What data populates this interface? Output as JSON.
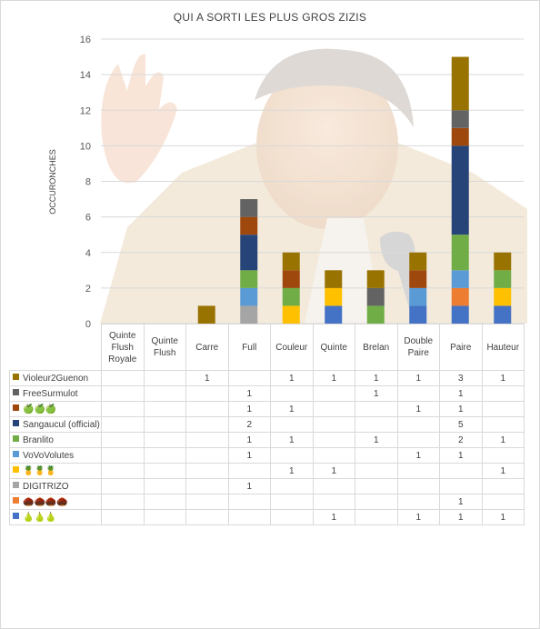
{
  "chart_data": {
    "type": "bar",
    "stacked": true,
    "title": "QUI A SORTI LES PLUS GROS ZIZIS",
    "ylabel": "OCCURONCHES",
    "xlabel": "",
    "ylim": [
      0,
      16
    ],
    "yticks": [
      0,
      2,
      4,
      6,
      8,
      10,
      12,
      14,
      16
    ],
    "categories": [
      "Quinte Flush Royale",
      "Quinte Flush",
      "Carre",
      "Full",
      "Couleur",
      "Quinte",
      "Brelan",
      "Double Paire",
      "Paire",
      "Hauteur"
    ],
    "legend_position": "data-table",
    "series": [
      {
        "name": "🍐🍐🍐",
        "color": "#4472c4",
        "values": [
          null,
          null,
          null,
          null,
          null,
          1,
          null,
          1,
          1,
          1
        ]
      },
      {
        "name": "🌰🌰🌰🌰",
        "color": "#ed7d31",
        "values": [
          null,
          null,
          null,
          null,
          null,
          null,
          null,
          null,
          1,
          null
        ]
      },
      {
        "name": "DIGITRIZO",
        "color": "#a5a5a5",
        "values": [
          null,
          null,
          null,
          1,
          null,
          null,
          null,
          null,
          null,
          null
        ]
      },
      {
        "name": "🍍🍍🍍",
        "color": "#ffc000",
        "values": [
          null,
          null,
          null,
          null,
          1,
          1,
          null,
          null,
          null,
          1
        ]
      },
      {
        "name": "VoVoVolutes",
        "color": "#5b9bd5",
        "values": [
          null,
          null,
          null,
          1,
          null,
          null,
          null,
          1,
          1,
          null
        ]
      },
      {
        "name": "Branlito",
        "color": "#70ad47",
        "values": [
          null,
          null,
          null,
          1,
          1,
          null,
          1,
          null,
          2,
          1
        ]
      },
      {
        "name": "Sangaucul (official)",
        "color": "#264478",
        "values": [
          null,
          null,
          null,
          2,
          null,
          null,
          null,
          null,
          5,
          null
        ]
      },
      {
        "name": "🍏🍏🍏",
        "color": "#9e480e",
        "values": [
          null,
          null,
          null,
          1,
          1,
          null,
          null,
          1,
          1,
          null
        ]
      },
      {
        "name": "FreeSurmulot",
        "color": "#636363",
        "values": [
          null,
          null,
          null,
          1,
          null,
          null,
          1,
          null,
          1,
          null
        ]
      },
      {
        "name": "Violeur2Guenon",
        "color": "#997300",
        "values": [
          null,
          null,
          1,
          null,
          1,
          1,
          1,
          1,
          3,
          1
        ]
      }
    ]
  }
}
